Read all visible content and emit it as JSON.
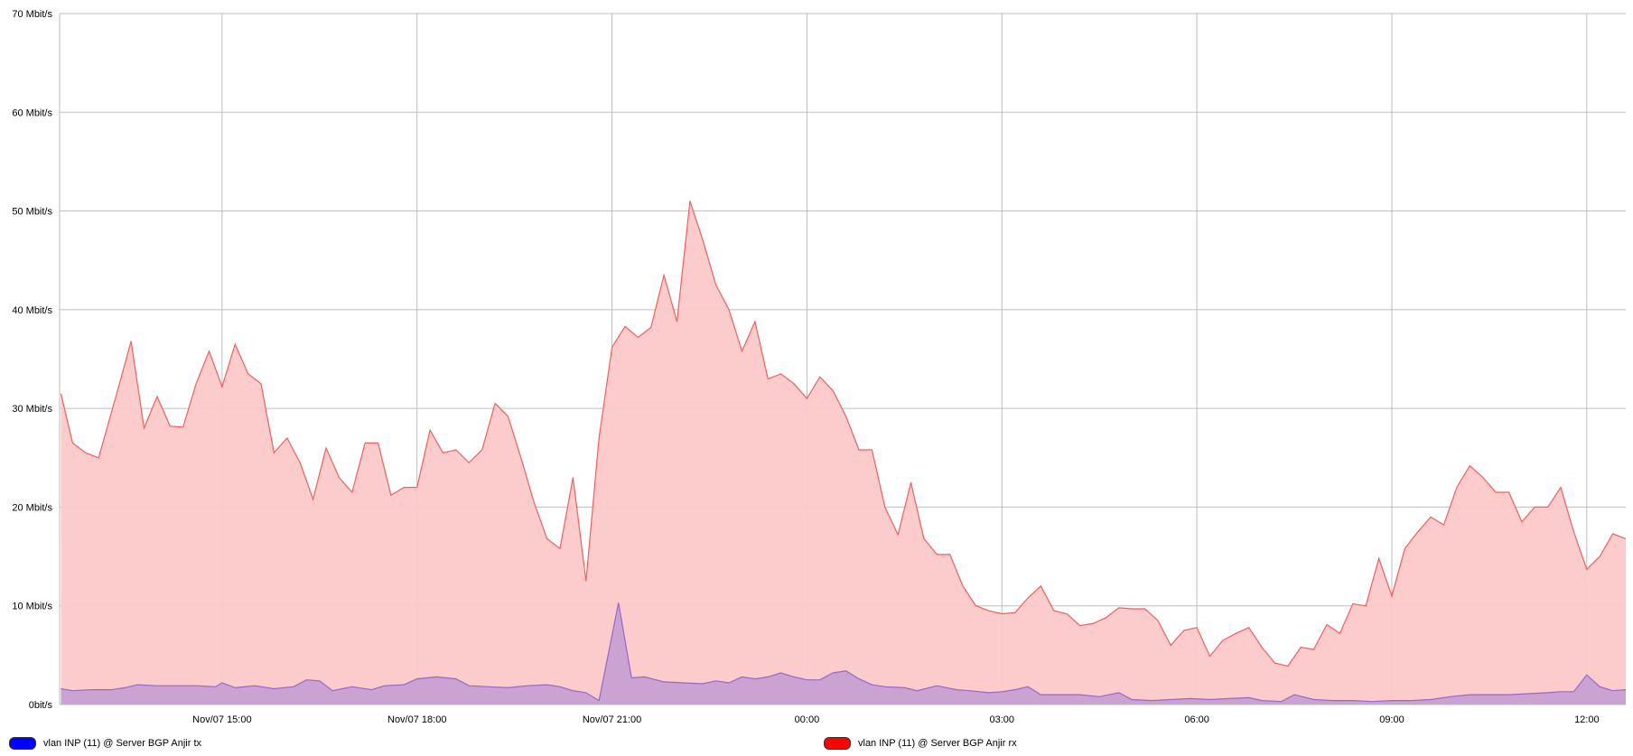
{
  "chart_data": {
    "type": "area",
    "title": "",
    "xlabel": "",
    "ylabel": "",
    "ylim": [
      0,
      70
    ],
    "yticks": [
      0,
      10,
      20,
      30,
      40,
      50,
      60,
      70
    ],
    "ytick_labels": [
      "0bit/s",
      "10 Mbit/s",
      "20 Mbit/s",
      "30 Mbit/s",
      "40 Mbit/s",
      "50 Mbit/s",
      "60 Mbit/s",
      "70 Mbit/s"
    ],
    "x_unit": "hours since Nov/07 00:00",
    "xlim": [
      12.5,
      36.6
    ],
    "xticks": [
      15,
      18,
      21,
      24,
      27,
      30,
      33,
      36
    ],
    "xtick_labels": [
      "Nov/07 15:00",
      "Nov/07 18:00",
      "Nov/07 21:00",
      "00:00",
      "03:00",
      "06:00",
      "09:00",
      "12:00"
    ],
    "grid": true,
    "legend_position": "bottom",
    "series": [
      {
        "name": "vlan INP (11) @ Server BGP Anjir tx",
        "legend_color": "#0000ff",
        "fill": "#c8a0d2",
        "stroke": "#9966cc",
        "points": [
          [
            12.52,
            1.6
          ],
          [
            12.7,
            1.4
          ],
          [
            13.0,
            1.5
          ],
          [
            13.3,
            1.5
          ],
          [
            13.5,
            1.7
          ],
          [
            13.7,
            2.0
          ],
          [
            14.0,
            1.9
          ],
          [
            14.3,
            1.9
          ],
          [
            14.6,
            1.9
          ],
          [
            14.9,
            1.8
          ],
          [
            15.0,
            2.2
          ],
          [
            15.2,
            1.7
          ],
          [
            15.5,
            1.9
          ],
          [
            15.8,
            1.6
          ],
          [
            16.1,
            1.8
          ],
          [
            16.3,
            2.5
          ],
          [
            16.5,
            2.4
          ],
          [
            16.7,
            1.4
          ],
          [
            17.0,
            1.8
          ],
          [
            17.3,
            1.5
          ],
          [
            17.5,
            1.9
          ],
          [
            17.8,
            2.0
          ],
          [
            18.0,
            2.6
          ],
          [
            18.3,
            2.8
          ],
          [
            18.6,
            2.6
          ],
          [
            18.8,
            1.9
          ],
          [
            19.1,
            1.8
          ],
          [
            19.4,
            1.7
          ],
          [
            19.7,
            1.9
          ],
          [
            20.0,
            2.0
          ],
          [
            20.2,
            1.8
          ],
          [
            20.4,
            1.4
          ],
          [
            20.6,
            1.2
          ],
          [
            20.8,
            0.4
          ],
          [
            21.1,
            10.3
          ],
          [
            21.3,
            2.7
          ],
          [
            21.5,
            2.8
          ],
          [
            21.8,
            2.3
          ],
          [
            22.1,
            2.2
          ],
          [
            22.4,
            2.1
          ],
          [
            22.6,
            2.4
          ],
          [
            22.8,
            2.2
          ],
          [
            23.0,
            2.8
          ],
          [
            23.2,
            2.6
          ],
          [
            23.4,
            2.8
          ],
          [
            23.6,
            3.2
          ],
          [
            23.8,
            2.8
          ],
          [
            24.0,
            2.5
          ],
          [
            24.2,
            2.5
          ],
          [
            24.4,
            3.2
          ],
          [
            24.6,
            3.4
          ],
          [
            24.8,
            2.6
          ],
          [
            25.0,
            2.0
          ],
          [
            25.2,
            1.8
          ],
          [
            25.5,
            1.7
          ],
          [
            25.7,
            1.4
          ],
          [
            26.0,
            1.9
          ],
          [
            26.3,
            1.5
          ],
          [
            26.5,
            1.4
          ],
          [
            26.8,
            1.2
          ],
          [
            27.0,
            1.3
          ],
          [
            27.2,
            1.5
          ],
          [
            27.4,
            1.8
          ],
          [
            27.6,
            1.0
          ],
          [
            27.9,
            1.0
          ],
          [
            28.2,
            1.0
          ],
          [
            28.5,
            0.8
          ],
          [
            28.8,
            1.2
          ],
          [
            29.0,
            0.5
          ],
          [
            29.3,
            0.4
          ],
          [
            29.6,
            0.5
          ],
          [
            29.9,
            0.6
          ],
          [
            30.2,
            0.5
          ],
          [
            30.5,
            0.6
          ],
          [
            30.8,
            0.7
          ],
          [
            31.0,
            0.4
          ],
          [
            31.3,
            0.3
          ],
          [
            31.5,
            1.0
          ],
          [
            31.8,
            0.5
          ],
          [
            32.1,
            0.4
          ],
          [
            32.4,
            0.4
          ],
          [
            32.7,
            0.3
          ],
          [
            33.0,
            0.4
          ],
          [
            33.3,
            0.4
          ],
          [
            33.6,
            0.5
          ],
          [
            33.9,
            0.8
          ],
          [
            34.2,
            1.0
          ],
          [
            34.5,
            1.0
          ],
          [
            34.8,
            1.0
          ],
          [
            35.1,
            1.1
          ],
          [
            35.4,
            1.2
          ],
          [
            35.6,
            1.3
          ],
          [
            35.8,
            1.3
          ],
          [
            36.0,
            3.0
          ],
          [
            36.2,
            1.8
          ],
          [
            36.4,
            1.4
          ],
          [
            36.6,
            1.5
          ]
        ]
      },
      {
        "name": "vlan INP (11) @ Server BGP Anjir rx",
        "legend_color": "#ff0000",
        "fill": "#fcc8c8",
        "stroke": "#f06060",
        "points": [
          [
            12.52,
            31.5
          ],
          [
            12.7,
            26.5
          ],
          [
            12.9,
            25.5
          ],
          [
            13.1,
            25.0
          ],
          [
            13.4,
            32.0
          ],
          [
            13.6,
            36.8
          ],
          [
            13.8,
            28.0
          ],
          [
            14.0,
            31.2
          ],
          [
            14.2,
            28.2
          ],
          [
            14.4,
            28.1
          ],
          [
            14.6,
            32.5
          ],
          [
            14.8,
            35.8
          ],
          [
            15.0,
            32.2
          ],
          [
            15.2,
            36.5
          ],
          [
            15.4,
            33.5
          ],
          [
            15.6,
            32.5
          ],
          [
            15.8,
            25.5
          ],
          [
            16.0,
            27.0
          ],
          [
            16.2,
            24.5
          ],
          [
            16.4,
            20.8
          ],
          [
            16.6,
            26.0
          ],
          [
            16.8,
            23.0
          ],
          [
            17.0,
            21.5
          ],
          [
            17.2,
            26.5
          ],
          [
            17.4,
            26.5
          ],
          [
            17.6,
            21.2
          ],
          [
            17.8,
            22.0
          ],
          [
            18.0,
            22.0
          ],
          [
            18.2,
            27.8
          ],
          [
            18.4,
            25.5
          ],
          [
            18.6,
            25.8
          ],
          [
            18.8,
            24.5
          ],
          [
            19.0,
            25.8
          ],
          [
            19.2,
            30.5
          ],
          [
            19.4,
            29.2
          ],
          [
            19.6,
            25.0
          ],
          [
            19.8,
            20.5
          ],
          [
            20.0,
            16.8
          ],
          [
            20.2,
            15.8
          ],
          [
            20.4,
            23.0
          ],
          [
            20.6,
            12.5
          ],
          [
            20.8,
            27.0
          ],
          [
            21.0,
            36.2
          ],
          [
            21.2,
            38.3
          ],
          [
            21.4,
            37.2
          ],
          [
            21.6,
            38.2
          ],
          [
            21.8,
            43.5
          ],
          [
            22.0,
            38.8
          ],
          [
            22.2,
            51.0
          ],
          [
            22.4,
            47.0
          ],
          [
            22.6,
            42.5
          ],
          [
            22.8,
            40.0
          ],
          [
            23.0,
            35.8
          ],
          [
            23.2,
            38.8
          ],
          [
            23.4,
            33.0
          ],
          [
            23.6,
            33.5
          ],
          [
            23.8,
            32.5
          ],
          [
            24.0,
            31.0
          ],
          [
            24.2,
            33.2
          ],
          [
            24.4,
            31.8
          ],
          [
            24.6,
            29.2
          ],
          [
            24.8,
            25.8
          ],
          [
            25.0,
            25.8
          ],
          [
            25.2,
            20.0
          ],
          [
            25.4,
            17.2
          ],
          [
            25.6,
            22.5
          ],
          [
            25.8,
            16.8
          ],
          [
            26.0,
            15.2
          ],
          [
            26.2,
            15.2
          ],
          [
            26.4,
            12.0
          ],
          [
            26.6,
            10.0
          ],
          [
            26.8,
            9.5
          ],
          [
            27.0,
            9.2
          ],
          [
            27.2,
            9.3
          ],
          [
            27.4,
            10.8
          ],
          [
            27.6,
            12.0
          ],
          [
            27.8,
            9.5
          ],
          [
            28.0,
            9.2
          ],
          [
            28.2,
            8.0
          ],
          [
            28.4,
            8.2
          ],
          [
            28.6,
            8.8
          ],
          [
            28.8,
            9.8
          ],
          [
            29.0,
            9.7
          ],
          [
            29.2,
            9.7
          ],
          [
            29.4,
            8.5
          ],
          [
            29.6,
            6.0
          ],
          [
            29.8,
            7.5
          ],
          [
            30.0,
            7.8
          ],
          [
            30.2,
            4.9
          ],
          [
            30.4,
            6.5
          ],
          [
            30.6,
            7.2
          ],
          [
            30.8,
            7.8
          ],
          [
            31.0,
            5.8
          ],
          [
            31.2,
            4.2
          ],
          [
            31.4,
            3.9
          ],
          [
            31.6,
            5.8
          ],
          [
            31.8,
            5.6
          ],
          [
            32.0,
            8.1
          ],
          [
            32.2,
            7.2
          ],
          [
            32.4,
            10.2
          ],
          [
            32.6,
            10.0
          ],
          [
            32.8,
            14.8
          ],
          [
            33.0,
            11.0
          ],
          [
            33.2,
            15.8
          ],
          [
            33.4,
            17.5
          ],
          [
            33.6,
            19.0
          ],
          [
            33.8,
            18.2
          ],
          [
            34.0,
            22.0
          ],
          [
            34.2,
            24.2
          ],
          [
            34.4,
            23.0
          ],
          [
            34.6,
            21.5
          ],
          [
            34.8,
            21.5
          ],
          [
            35.0,
            18.5
          ],
          [
            35.2,
            20.0
          ],
          [
            35.4,
            20.0
          ],
          [
            35.6,
            22.0
          ],
          [
            35.8,
            17.5
          ],
          [
            36.0,
            13.7
          ],
          [
            36.2,
            15.0
          ],
          [
            36.4,
            17.3
          ],
          [
            36.6,
            16.8
          ]
        ]
      }
    ]
  },
  "legend": [
    {
      "label": "vlan INP (11) @ Server BGP Anjir tx",
      "color": "#0000ff"
    },
    {
      "label": "vlan INP (11) @ Server BGP Anjir rx",
      "color": "#ff0000"
    }
  ]
}
